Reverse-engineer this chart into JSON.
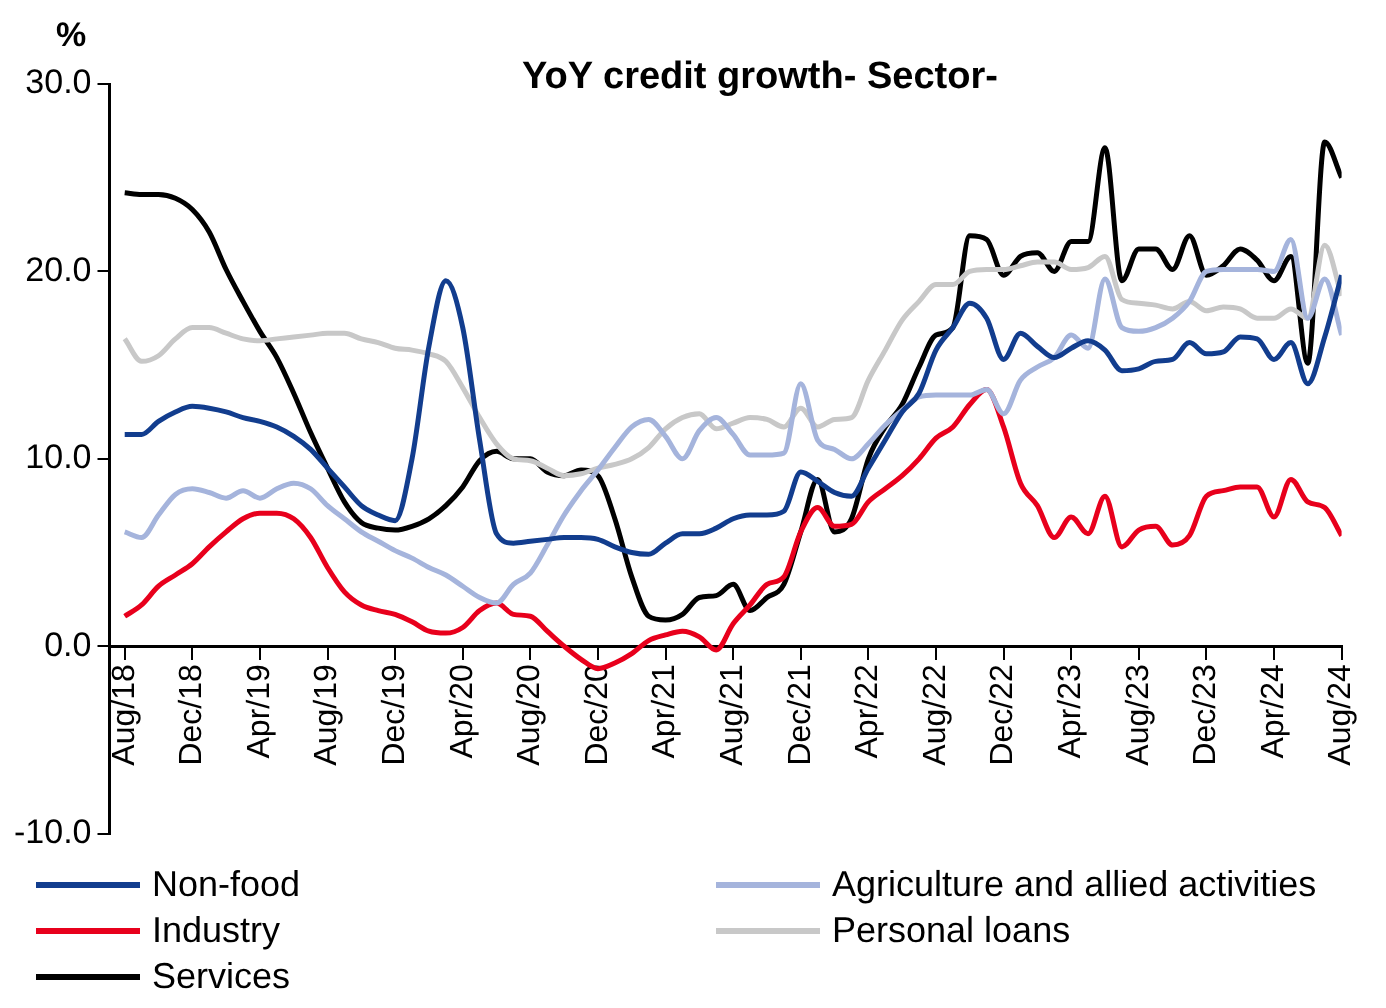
{
  "chart_data": {
    "type": "line",
    "title": "YoY credit growth- Sector-",
    "ylabel": "%",
    "categories": [
      "Aug/18",
      null,
      null,
      null,
      "Dec/18",
      null,
      null,
      null,
      "Apr/19",
      null,
      null,
      null,
      "Aug/19",
      null,
      null,
      null,
      "Dec/19",
      null,
      null,
      null,
      "Apr/20",
      null,
      null,
      null,
      "Aug/20",
      null,
      null,
      null,
      "Dec/20",
      null,
      null,
      null,
      "Apr/21",
      null,
      null,
      null,
      "Aug/21",
      null,
      null,
      null,
      "Dec/21",
      null,
      null,
      null,
      "Apr/22",
      null,
      null,
      null,
      "Aug/22",
      null,
      null,
      null,
      "Dec/22",
      null,
      null,
      null,
      "Apr/23",
      null,
      null,
      null,
      "Aug/23",
      null,
      null,
      null,
      "Dec/23",
      null,
      null,
      null,
      "Apr/24",
      null,
      null,
      null,
      "Aug/24"
    ],
    "series": [
      {
        "name": "Non-food",
        "color": "#123d8e",
        "values": [
          11.3,
          11.3,
          12,
          12.5,
          12.8,
          12.7,
          12.5,
          12.2,
          12,
          11.7,
          11.2,
          10.5,
          9.5,
          8.5,
          7.5,
          7,
          6.7,
          10,
          16,
          19.5,
          17,
          11,
          6,
          5.5,
          5.6,
          5.7,
          5.8,
          5.8,
          5.7,
          5.3,
          5,
          4.9,
          5.5,
          6,
          6,
          6.3,
          6.8,
          7,
          7,
          7.2,
          9.3,
          8.8,
          8.2,
          8,
          9.5,
          11,
          12.5,
          13.5,
          15.8,
          17,
          18.3,
          17.5,
          15.3,
          16.7,
          16,
          15.4,
          15.9,
          16.3,
          15.8,
          14.7,
          14.8,
          15.2,
          15.3,
          16.2,
          15.6,
          15.7,
          16.5,
          16.4,
          15.3,
          16.2,
          14,
          16.5,
          19.8
        ]
      },
      {
        "name": "Agriculture and allied activities",
        "color": "#a5b4dc",
        "values": [
          6.1,
          5.8,
          7,
          8.1,
          8.4,
          8.2,
          7.9,
          8.3,
          7.9,
          8.4,
          8.7,
          8.4,
          7.5,
          6.8,
          6.1,
          5.6,
          5.1,
          4.7,
          4.2,
          3.8,
          3.2,
          2.6,
          2.3,
          3.3,
          3.9,
          5.4,
          7,
          8.3,
          9.4,
          10.6,
          11.7,
          12.1,
          11.2,
          10,
          11.5,
          12.2,
          11.3,
          10.2,
          10.2,
          10.3,
          14,
          11,
          10.5,
          10,
          10.8,
          11.8,
          12.6,
          13.3,
          13.4,
          13.4,
          13.4,
          13.7,
          12.4,
          14.2,
          14.9,
          15.4,
          16.6,
          15.9,
          19.6,
          17,
          16.8,
          17,
          17.5,
          18.4,
          20,
          20.1,
          20.1,
          20.1,
          20,
          21.7,
          17.5,
          19.6,
          16.6
        ]
      },
      {
        "name": "Industry",
        "color": "#e8001c",
        "values": [
          1.6,
          2.2,
          3.2,
          3.8,
          4.4,
          5.3,
          6.1,
          6.8,
          7.1,
          7.1,
          6.8,
          5.8,
          4.2,
          2.9,
          2.2,
          1.9,
          1.7,
          1.3,
          0.8,
          0.7,
          1,
          1.9,
          2.3,
          1.7,
          1.6,
          0.8,
          0,
          -0.7,
          -1.2,
          -0.9,
          -0.4,
          0.3,
          0.6,
          0.8,
          0.5,
          -0.2,
          1.2,
          2.2,
          3.3,
          3.7,
          6.1,
          7.4,
          6.4,
          6.5,
          7.7,
          8.4,
          9.1,
          10,
          11.1,
          11.7,
          12.9,
          13.7,
          11.7,
          8.7,
          7.5,
          5.8,
          6.9,
          6,
          8,
          5.3,
          6.2,
          6.4,
          5.4,
          5.9,
          8,
          8.3,
          8.5,
          8.5,
          6.9,
          8.9,
          7.7,
          7.4,
          5.9
        ]
      },
      {
        "name": "Personal loans",
        "color": "#c8c8c8",
        "values": [
          16.4,
          15.2,
          15.5,
          16.4,
          17,
          17,
          16.7,
          16.4,
          16.3,
          16.4,
          16.5,
          16.6,
          16.7,
          16.7,
          16.4,
          16.2,
          15.9,
          15.8,
          15.6,
          15.2,
          13.8,
          12.2,
          10.8,
          10,
          9.9,
          9.5,
          9.1,
          9.2,
          9.5,
          9.7,
          10,
          10.6,
          11.6,
          12.2,
          12.4,
          11.6,
          11.9,
          12.2,
          12.1,
          11.7,
          12.7,
          11.7,
          12.1,
          12.2,
          14.2,
          15.8,
          17.4,
          18.4,
          19.3,
          19.3,
          20,
          20.1,
          20.1,
          20.3,
          20.5,
          20.5,
          20.1,
          20.2,
          20.8,
          18.5,
          18.3,
          18.2,
          18,
          18.4,
          17.9,
          18.1,
          18,
          17.5,
          17.5,
          18,
          17.5,
          21.4,
          18.7
        ]
      },
      {
        "name": "Services",
        "color": "#000000",
        "values": [
          24.2,
          24.1,
          24.1,
          23.9,
          23.3,
          22.1,
          20.1,
          18.4,
          16.8,
          15.4,
          13.5,
          11.4,
          9.5,
          7.7,
          6.6,
          6.3,
          6.2,
          6.4,
          6.8,
          7.5,
          8.5,
          9.9,
          10.4,
          10,
          10,
          9.3,
          9.1,
          9.4,
          9.1,
          6.8,
          3.7,
          1.6,
          1.4,
          1.7,
          2.6,
          2.7,
          3.3,
          1.9,
          2.6,
          3.3,
          6.1,
          8.9,
          6.1,
          6.8,
          10,
          11.7,
          12.9,
          14.9,
          16.6,
          17,
          21.9,
          21.7,
          19.8,
          20.8,
          21,
          20,
          21.6,
          21.6,
          26.6,
          19.5,
          21.2,
          21.2,
          20.1,
          21.9,
          19.8,
          20.3,
          21.2,
          20.6,
          19.5,
          20.8,
          15.1,
          26.9,
          25
        ]
      }
    ],
    "ylim": [
      -10,
      30
    ],
    "yticks": [
      {
        "value": -10,
        "label": "-10.0"
      },
      {
        "value": 0,
        "label": "0.0"
      },
      {
        "value": 10,
        "label": "10.0"
      },
      {
        "value": 20,
        "label": "20.0"
      },
      {
        "value": 30,
        "label": "30.0"
      }
    ],
    "grid": false,
    "legend": "bottom",
    "marker": "none",
    "line_style": "solid"
  }
}
